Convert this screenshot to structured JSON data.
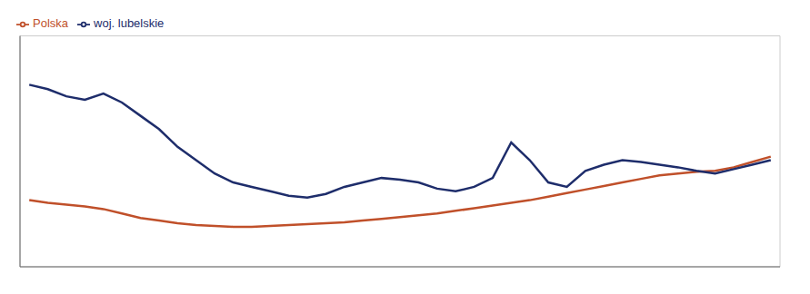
{
  "chart_data": {
    "type": "line",
    "x": [
      0,
      1,
      2,
      3,
      4,
      5,
      6,
      7,
      8,
      9,
      10,
      11,
      12,
      13,
      14,
      15,
      16,
      17,
      18,
      19,
      20,
      21,
      22,
      23,
      24,
      25,
      26,
      27,
      28,
      29,
      30,
      31,
      32,
      33,
      34,
      35,
      36,
      37,
      38,
      39,
      40
    ],
    "series": [
      {
        "name": "Polska",
        "color": "#c0502a",
        "values": [
          97.5,
          97.2,
          97.0,
          96.8,
          96.5,
          96.0,
          95.5,
          95.2,
          94.9,
          94.7,
          94.6,
          94.5,
          94.5,
          94.6,
          94.7,
          94.8,
          94.9,
          95.0,
          95.2,
          95.4,
          95.6,
          95.8,
          96.0,
          96.3,
          96.6,
          96.9,
          97.2,
          97.5,
          97.9,
          98.3,
          98.7,
          99.1,
          99.5,
          99.9,
          100.3,
          100.5,
          100.7,
          100.8,
          101.2,
          101.8,
          102.4
        ]
      },
      {
        "name": "woj. lubelskie",
        "color": "#1e2d6b",
        "values": [
          110.5,
          110.0,
          109.2,
          108.8,
          109.5,
          108.5,
          107.0,
          105.5,
          103.5,
          102.0,
          100.5,
          99.5,
          99.0,
          98.5,
          98.0,
          97.8,
          98.2,
          99.0,
          99.5,
          100.0,
          99.8,
          99.5,
          98.8,
          98.5,
          99.0,
          100.0,
          104.0,
          102.0,
          99.5,
          99.0,
          100.8,
          101.5,
          102.0,
          101.8,
          101.5,
          101.2,
          100.8,
          100.5,
          101.0,
          101.5,
          102.0
        ]
      }
    ],
    "xlim": [
      -0.5,
      40.5
    ],
    "xticks": [
      0,
      2,
      4,
      6,
      8,
      10,
      12,
      14,
      16,
      18,
      20,
      22,
      24,
      26,
      28,
      30,
      32,
      34,
      36,
      38,
      40
    ],
    "ylim": [
      90,
      116
    ],
    "yticks": [
      90,
      92,
      94,
      96,
      98,
      100,
      102,
      104,
      106,
      108,
      110,
      112,
      114,
      116
    ],
    "grid": true,
    "legend": "upper left",
    "tick_labels": false
  }
}
